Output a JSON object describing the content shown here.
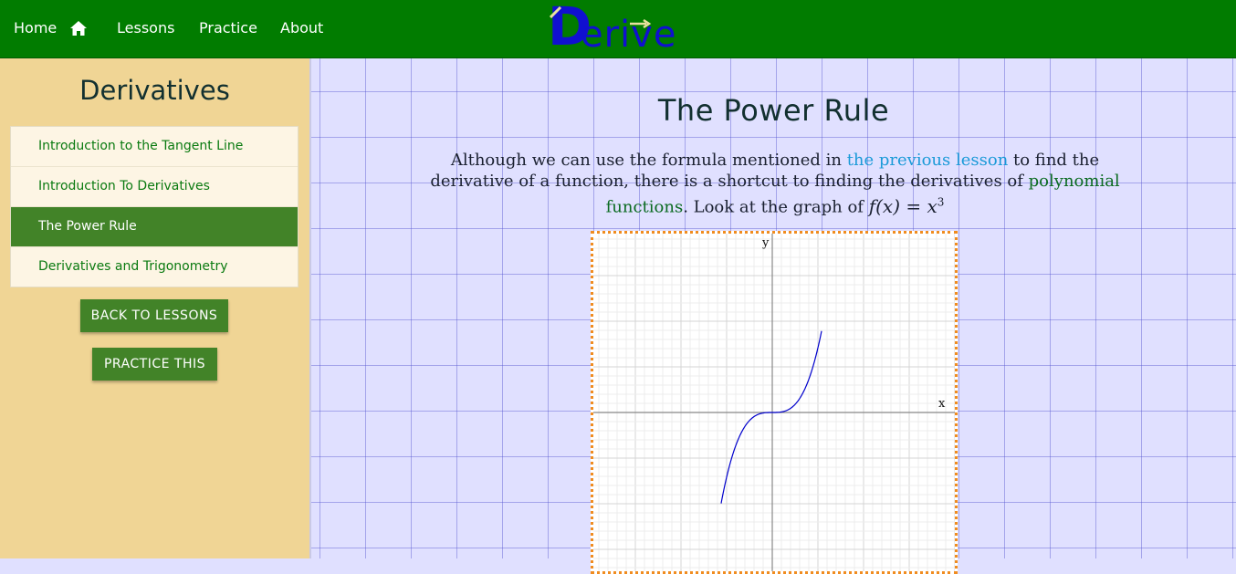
{
  "nav": {
    "home": "Home",
    "lessons": "Lessons",
    "practice": "Practice",
    "about": "About",
    "logo_first": "D",
    "logo_rest": "erive"
  },
  "sidebar": {
    "title": "Derivatives",
    "items": [
      {
        "label": "Introduction to the Tangent Line"
      },
      {
        "label": "Introduction To Derivatives"
      },
      {
        "label": "The Power Rule"
      },
      {
        "label": "Derivatives and Trigonometry"
      }
    ],
    "active_index": 2,
    "back_button": "BACK TO LESSONS",
    "practice_button": "PRACTICE THIS"
  },
  "main": {
    "title": "The Power Rule",
    "intro": {
      "part1": "Although we can use the formula mentioned in ",
      "link_previous": "the previous lesson",
      "part2": " to find the derivative of a function, there is a shortcut to finding the derivatives of ",
      "link_polynomial": "polynomial functions",
      "part3": ". Look at the graph of ",
      "formula_base": "f(x) = x",
      "formula_exponent": "3"
    },
    "graph": {
      "x_label": "x",
      "y_label": "y",
      "function": "x^3"
    }
  },
  "colors": {
    "nav_bg": "#017c00",
    "sidebar_bg": "#f0d595",
    "active_item": "#428328",
    "link_blue": "#1a9ad8",
    "link_green": "#0a6a20",
    "curve": "#0000cc",
    "graph_border": "#f08c20"
  }
}
